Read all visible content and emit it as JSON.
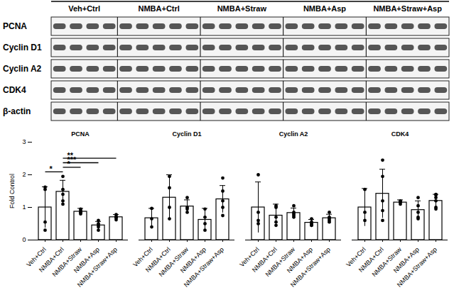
{
  "blot": {
    "groups": [
      "Veh+Ctrl",
      "NMBA+Ctrl",
      "NMBA+Straw",
      "NMBA+Asp",
      "NMBA+Straw+Asp"
    ],
    "rows": [
      "PCNA",
      "Cyclin D1",
      "Cyclin A2",
      "CDK4",
      "β-actin"
    ]
  },
  "chart_data": {
    "type": "bar",
    "y_label": "Fold Control",
    "color": "#ffffff",
    "categories": [
      "Veh+Ctrl",
      "NMBA+Ctrl",
      "NMBA+Straw",
      "NMBA+Asp",
      "NMBA+Straw+Asp"
    ],
    "ylim": [
      0,
      3
    ],
    "yticks": [
      0,
      1,
      2,
      3
    ],
    "panels": [
      {
        "title": "PCNA",
        "values": [
          1.0,
          1.48,
          0.87,
          0.45,
          0.7
        ],
        "errors": [
          0.63,
          0.35,
          0.1,
          0.12,
          0.08
        ],
        "points": [
          [
            1.62,
            1.55,
            0.55,
            0.3
          ],
          [
            1.95,
            1.55,
            1.4,
            1.2,
            1.1
          ],
          [
            0.95,
            0.9,
            0.85,
            0.85,
            0.8
          ],
          [
            0.6,
            0.5,
            0.45,
            0.4,
            0.3
          ],
          [
            0.78,
            0.72,
            0.7,
            0.68,
            0.62
          ]
        ],
        "significance": [
          {
            "from": "Veh+Ctrl",
            "to": "NMBA+Ctrl",
            "label": "*"
          },
          {
            "from": "NMBA+Ctrl",
            "to": "NMBA+Straw",
            "label": "*"
          },
          {
            "from": "NMBA+Ctrl",
            "to": "NMBA+Asp",
            "label": "***"
          },
          {
            "from": "NMBA+Ctrl",
            "to": "NMBA+Straw+Asp",
            "label": "**"
          }
        ]
      },
      {
        "title": "Cyclin D1",
        "values": [
          0.67,
          1.3,
          1.03,
          0.62,
          1.25
        ],
        "errors": [
          0.3,
          0.7,
          0.2,
          0.35,
          0.42
        ],
        "points": [
          [
            0.97,
            0.65,
            0.4
          ],
          [
            1.95,
            1.6,
            1.0,
            0.65
          ],
          [
            1.3,
            1.0,
            0.95,
            0.85
          ],
          [
            0.95,
            0.7,
            0.5,
            0.3
          ],
          [
            1.9,
            1.5,
            1.2,
            1.0,
            0.75
          ]
        ],
        "significance": []
      },
      {
        "title": "Cyclin A2",
        "values": [
          1.0,
          0.75,
          0.83,
          0.53,
          0.67
        ],
        "errors": [
          0.78,
          0.35,
          0.15,
          0.1,
          0.12
        ],
        "points": [
          [
            2.0,
            0.85,
            0.6,
            0.5
          ],
          [
            1.05,
            1.0,
            0.7,
            0.55,
            0.45
          ],
          [
            1.05,
            0.85,
            0.8,
            0.75,
            0.7
          ],
          [
            0.65,
            0.55,
            0.5,
            0.45,
            0.45
          ],
          [
            0.85,
            0.7,
            0.65,
            0.6,
            0.55
          ]
        ],
        "significance": []
      },
      {
        "title": "CDK4",
        "values": [
          1.0,
          1.42,
          1.15,
          0.92,
          1.2
        ],
        "errors": [
          0.58,
          0.75,
          0.08,
          0.28,
          0.2
        ],
        "points": [
          [
            1.55,
            0.85,
            0.6
          ],
          [
            2.45,
            1.95,
            1.2,
            0.9,
            0.6
          ],
          [
            1.2,
            1.18,
            1.15,
            1.1
          ],
          [
            1.3,
            1.05,
            0.85,
            0.7,
            0.65
          ],
          [
            1.4,
            1.38,
            1.3,
            1.2,
            1.0,
            0.95
          ]
        ],
        "significance": []
      }
    ]
  }
}
